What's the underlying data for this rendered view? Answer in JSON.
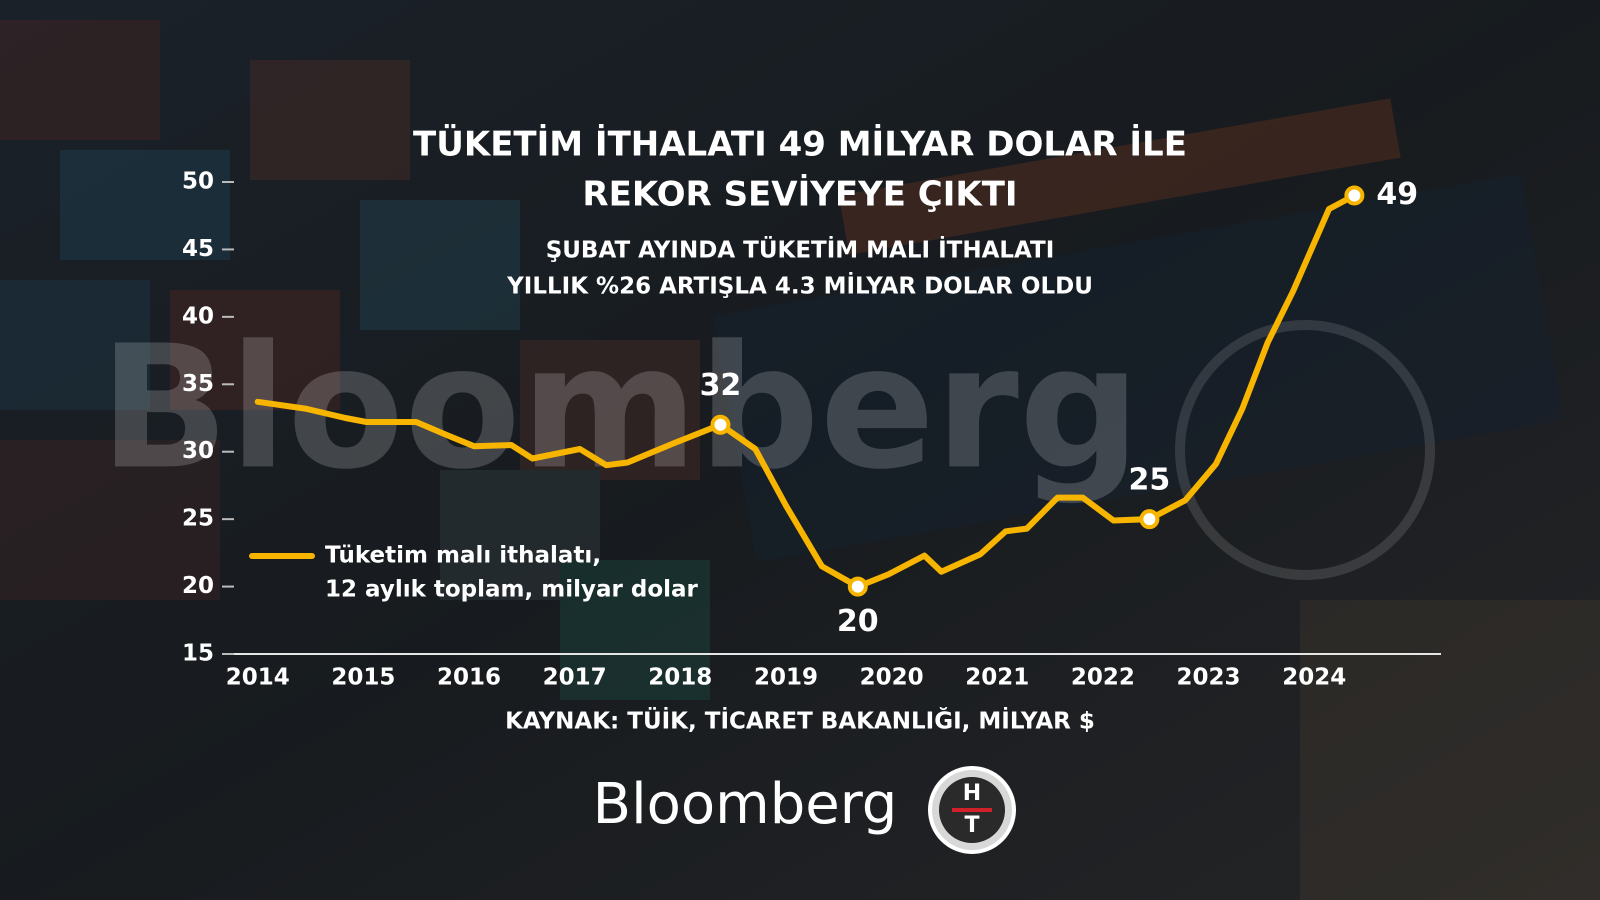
{
  "chart_data": {
    "type": "line",
    "title": [
      "TÜKETİM İTHALATI 49 MİLYAR DOLAR İLE",
      "REKOR SEVİYEYE ÇIKTI"
    ],
    "subtitle": [
      "ŞUBAT AYINDA TÜKETİM MALI İTHALATI",
      "YILLIK %26 ARTIŞLA 4.3 MİLYAR DOLAR OLDU"
    ],
    "source": "KAYNAK: TÜİK, TİCARET BAKANLIĞI, MİLYAR $",
    "x": [
      2014.0,
      2014.45,
      2014.83,
      2015.03,
      2015.5,
      2015.8,
      2016.05,
      2016.4,
      2016.6,
      2017.05,
      2017.3,
      2017.5,
      2017.93,
      2018.38,
      2018.71,
      2019.0,
      2019.34,
      2019.68,
      2019.97,
      2020.31,
      2020.47,
      2020.84,
      2021.08,
      2021.28,
      2021.57,
      2021.81,
      2022.1,
      2022.44,
      2022.78,
      2023.07,
      2023.32,
      2023.56,
      2023.8,
      2024.14,
      2024.38
    ],
    "series": [
      {
        "name": [
          "Tüketim malı ithalatı,",
          "12 aylık toplam, milyar dolar"
        ],
        "color": "#f7b500",
        "values": [
          33.7,
          33.2,
          32.5,
          32.2,
          32.2,
          31.2,
          30.4,
          30.5,
          29.5,
          30.2,
          29.0,
          29.2,
          30.6,
          32,
          30.2,
          26.0,
          21.5,
          20,
          20.9,
          22.3,
          21.1,
          22.4,
          24.1,
          24.3,
          26.6,
          26.6,
          24.9,
          25,
          26.4,
          29.1,
          33.2,
          38.1,
          41.9,
          48.0,
          49
        ],
        "value_labels": [
          null,
          null,
          null,
          null,
          null,
          null,
          null,
          null,
          null,
          null,
          null,
          null,
          null,
          "32",
          null,
          null,
          null,
          "20",
          null,
          null,
          null,
          null,
          null,
          null,
          null,
          null,
          null,
          "25",
          null,
          null,
          null,
          null,
          null,
          null,
          "49"
        ]
      }
    ],
    "xlim": [
      2013.7,
      2025.2
    ],
    "xticks": [
      2014,
      2015,
      2016,
      2017,
      2018,
      2019,
      2020,
      2021,
      2022,
      2023,
      2024
    ],
    "ylim": [
      15,
      50
    ],
    "yticks": [
      15,
      20,
      25,
      30,
      35,
      40,
      45,
      50
    ],
    "grid": false,
    "branding": {
      "logo": "Bloomberg",
      "badge": [
        "H",
        "T"
      ]
    }
  }
}
